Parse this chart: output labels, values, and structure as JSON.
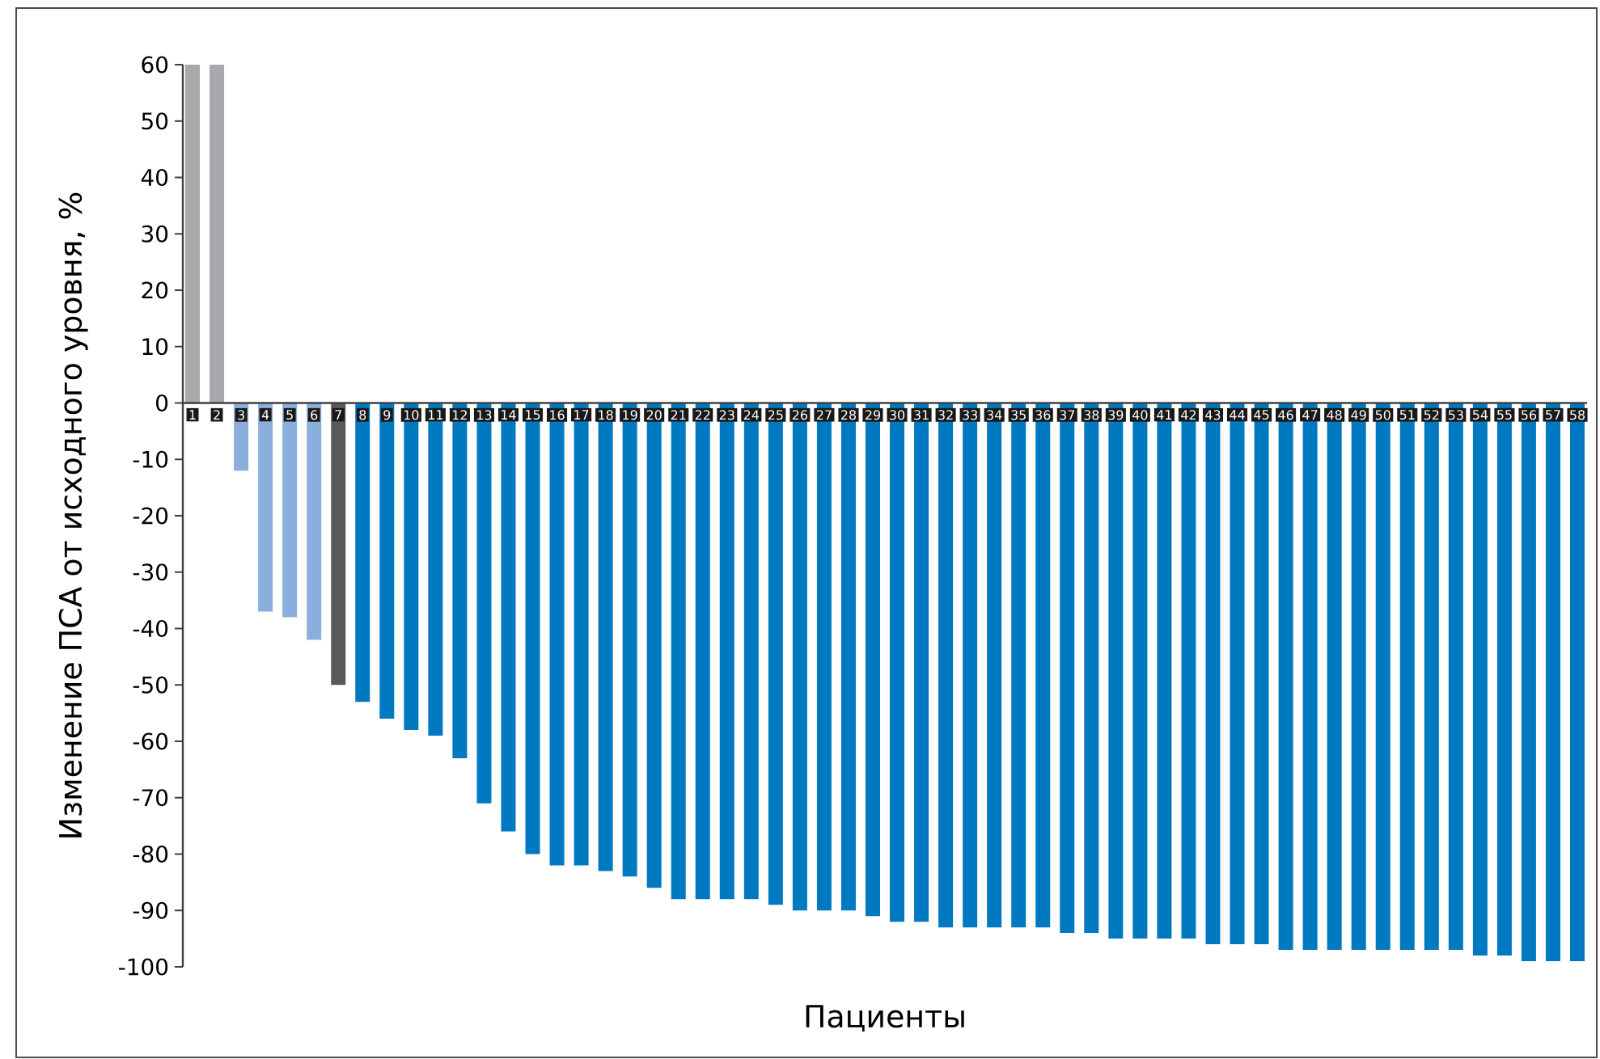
{
  "chart_data": {
    "type": "bar",
    "xlabel": "Пациенты",
    "ylabel": "Изменение ПСА от исходного уровня, %",
    "categories": [
      "1",
      "2",
      "3",
      "4",
      "5",
      "6",
      "7",
      "8",
      "9",
      "10",
      "11",
      "12",
      "13",
      "14",
      "15",
      "16",
      "17",
      "18",
      "19",
      "20",
      "21",
      "22",
      "23",
      "24",
      "25",
      "26",
      "27",
      "28",
      "29",
      "30",
      "31",
      "32",
      "33",
      "34",
      "35",
      "36",
      "37",
      "38",
      "39",
      "40",
      "41",
      "42",
      "43",
      "44",
      "45",
      "46",
      "47",
      "48",
      "49",
      "50",
      "51",
      "52",
      "53",
      "54",
      "55",
      "56",
      "57",
      "58"
    ],
    "values": [
      60,
      60,
      -12,
      -37,
      -38,
      -42,
      -50,
      -53,
      -56,
      -58,
      -59,
      -63,
      -71,
      -76,
      -80,
      -82,
      -82,
      -83,
      -84,
      -86,
      -88,
      -88,
      -88,
      -88,
      -89,
      -90,
      -90,
      -90,
      -91,
      -92,
      -92,
      -93,
      -93,
      -93,
      -93,
      -93,
      -94,
      -94,
      -95,
      -95,
      -95,
      -95,
      -96,
      -96,
      -96,
      -97,
      -97,
      -97,
      -97,
      -97,
      -97,
      -97,
      -97,
      -98,
      -98,
      -99,
      -99,
      -99
    ],
    "colors": [
      "#a7a9ac",
      "#a7a9ac",
      "#8aafdc",
      "#8aafdc",
      "#8aafdc",
      "#8aafdc",
      "#58595b",
      "#0079c1",
      "#0079c1",
      "#0079c1",
      "#0079c1",
      "#0079c1",
      "#0079c1",
      "#0079c1",
      "#0079c1",
      "#0079c1",
      "#0079c1",
      "#0079c1",
      "#0079c1",
      "#0079c1",
      "#0079c1",
      "#0079c1",
      "#0079c1",
      "#0079c1",
      "#0079c1",
      "#0079c1",
      "#0079c1",
      "#0079c1",
      "#0079c1",
      "#0079c1",
      "#0079c1",
      "#0079c1",
      "#0079c1",
      "#0079c1",
      "#0079c1",
      "#0079c1",
      "#0079c1",
      "#0079c1",
      "#0079c1",
      "#0079c1",
      "#0079c1",
      "#0079c1",
      "#0079c1",
      "#0079c1",
      "#0079c1",
      "#0079c1",
      "#0079c1",
      "#0079c1",
      "#0079c1",
      "#0079c1",
      "#0079c1",
      "#0079c1",
      "#0079c1",
      "#0079c1",
      "#0079c1",
      "#0079c1",
      "#0079c1",
      "#0079c1"
    ],
    "ylim": [
      -100,
      60
    ],
    "yticks": [
      -100,
      -90,
      -80,
      -70,
      -60,
      -50,
      -40,
      -30,
      -20,
      -10,
      0,
      10,
      20,
      30,
      40,
      50,
      60
    ],
    "grid": false
  }
}
